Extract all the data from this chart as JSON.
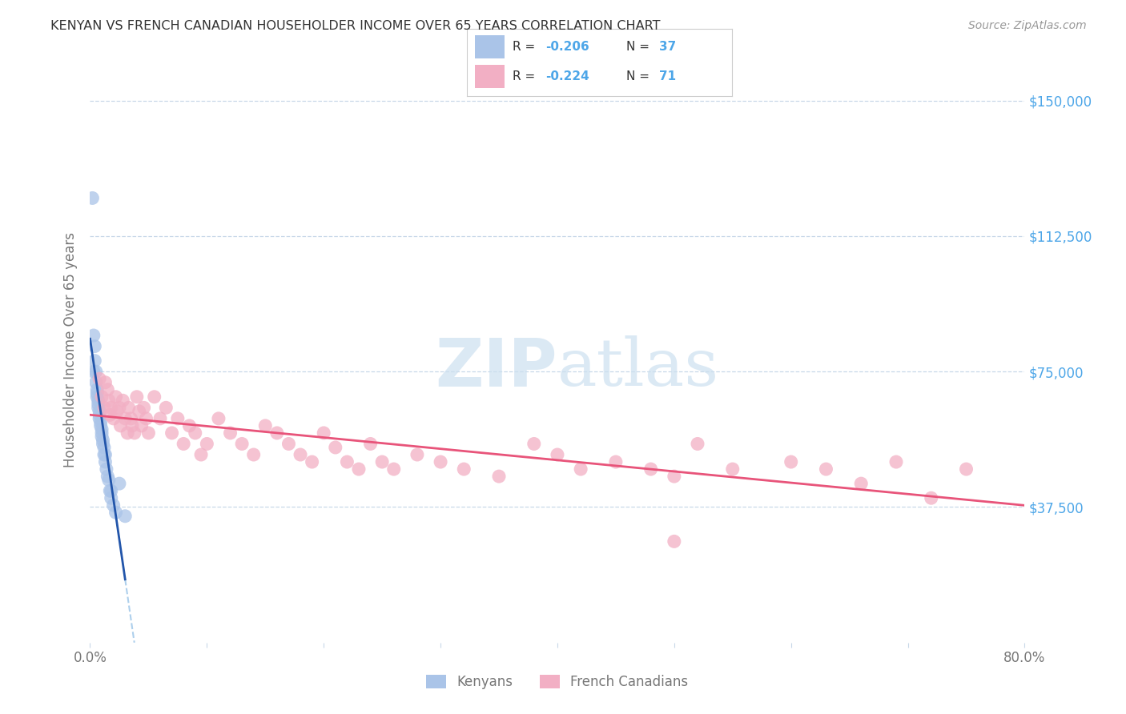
{
  "title": "KENYAN VS FRENCH CANADIAN HOUSEHOLDER INCOME OVER 65 YEARS CORRELATION CHART",
  "source": "Source: ZipAtlas.com",
  "ylabel": "Householder Income Over 65 years",
  "ytick_labels": [
    "$37,500",
    "$75,000",
    "$112,500",
    "$150,000"
  ],
  "ytick_values": [
    37500,
    75000,
    112500,
    150000
  ],
  "xlim": [
    0.0,
    0.8
  ],
  "ylim": [
    0,
    162000
  ],
  "kenyan_R": -0.206,
  "kenyan_N": 37,
  "french_R": -0.224,
  "french_N": 71,
  "kenyan_color": "#aac4e8",
  "french_color": "#f2afc4",
  "kenyan_line_color": "#2255aa",
  "french_line_color": "#e8547a",
  "kenyan_dashed_color": "#99c4e8",
  "watermark_color": "#cce0f0",
  "background_color": "#ffffff",
  "grid_color": "#c8d8e8",
  "right_ytick_color": "#4da6e8",
  "title_color": "#333333",
  "source_color": "#999999",
  "label_color": "#777777",
  "legend_text_color": "#333333",
  "bottom_legend_kenyan": "Kenyans",
  "bottom_legend_french": "French Canadians",
  "kenyan_x": [
    0.002,
    0.003,
    0.004,
    0.004,
    0.005,
    0.005,
    0.006,
    0.006,
    0.006,
    0.007,
    0.007,
    0.007,
    0.008,
    0.008,
    0.008,
    0.009,
    0.009,
    0.01,
    0.01,
    0.01,
    0.011,
    0.011,
    0.012,
    0.013,
    0.013,
    0.014,
    0.015,
    0.016,
    0.017,
    0.018,
    0.003,
    0.02,
    0.022,
    0.025,
    0.012,
    0.018,
    0.03
  ],
  "kenyan_y": [
    123000,
    75000,
    82000,
    78000,
    75000,
    72000,
    70000,
    69000,
    68000,
    67000,
    66000,
    65000,
    64000,
    63000,
    62000,
    61000,
    60000,
    59000,
    58000,
    57000,
    56000,
    55000,
    54000,
    52000,
    50000,
    48000,
    46000,
    45000,
    42000,
    40000,
    85000,
    38000,
    36000,
    44000,
    52000,
    42000,
    35000
  ],
  "french_x": [
    0.008,
    0.01,
    0.012,
    0.013,
    0.015,
    0.016,
    0.017,
    0.018,
    0.02,
    0.022,
    0.023,
    0.025,
    0.026,
    0.028,
    0.03,
    0.032,
    0.033,
    0.035,
    0.036,
    0.038,
    0.04,
    0.042,
    0.044,
    0.046,
    0.048,
    0.05,
    0.055,
    0.06,
    0.065,
    0.07,
    0.075,
    0.08,
    0.085,
    0.09,
    0.095,
    0.1,
    0.11,
    0.12,
    0.13,
    0.14,
    0.15,
    0.16,
    0.17,
    0.18,
    0.19,
    0.2,
    0.21,
    0.22,
    0.23,
    0.24,
    0.25,
    0.26,
    0.28,
    0.3,
    0.32,
    0.35,
    0.38,
    0.4,
    0.42,
    0.45,
    0.48,
    0.5,
    0.52,
    0.55,
    0.6,
    0.63,
    0.66,
    0.69,
    0.72,
    0.75,
    0.5
  ],
  "french_y": [
    73000,
    68000,
    65000,
    72000,
    70000,
    67000,
    63000,
    65000,
    62000,
    68000,
    64000,
    65000,
    60000,
    67000,
    62000,
    58000,
    65000,
    62000,
    60000,
    58000,
    68000,
    64000,
    60000,
    65000,
    62000,
    58000,
    68000,
    62000,
    65000,
    58000,
    62000,
    55000,
    60000,
    58000,
    52000,
    55000,
    62000,
    58000,
    55000,
    52000,
    60000,
    58000,
    55000,
    52000,
    50000,
    58000,
    54000,
    50000,
    48000,
    55000,
    50000,
    48000,
    52000,
    50000,
    48000,
    46000,
    55000,
    52000,
    48000,
    50000,
    48000,
    46000,
    55000,
    48000,
    50000,
    48000,
    44000,
    50000,
    40000,
    48000,
    28000
  ]
}
